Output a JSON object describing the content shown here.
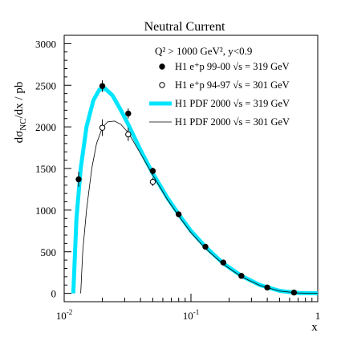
{
  "chart_data": {
    "type": "scatter",
    "title": "Neutral Current",
    "subtitle": "Q² > 1000 GeV², y<0.9",
    "xlabel": "x",
    "ylabel": "dσNC/dx / pb",
    "ylabel_main": "dσ",
    "ylabel_sub": "NC",
    "ylabel_rest": "/dx  / pb",
    "x_scale": "log",
    "xlim": [
      0.01,
      1
    ],
    "ylim": [
      -100,
      3100
    ],
    "x_major_ticks": [
      0.01,
      0.1,
      1
    ],
    "x_tick_labels": [
      {
        "base": "10",
        "exp": "-2"
      },
      {
        "base": "10",
        "exp": "-1"
      },
      {
        "base": "1",
        "exp": ""
      }
    ],
    "y_ticks": [
      0,
      500,
      1000,
      1500,
      2000,
      2500,
      3000
    ],
    "grid": false,
    "legend_position": "top-right",
    "legend": [
      {
        "marker": "filled-circle",
        "text": "H1 e⁺p 99-00  √s = 319 GeV"
      },
      {
        "marker": "open-circle",
        "text": "H1 e⁺p 94-97  √s = 301 GeV"
      },
      {
        "marker": "thick-band",
        "text": "H1 PDF 2000 √s = 319 GeV"
      },
      {
        "marker": "thin-line",
        "text": "H1 PDF 2000 √s = 301 GeV"
      }
    ],
    "series": [
      {
        "name": "H1 e⁺p 99-00  √s = 319 GeV",
        "style": "filled-circle",
        "x": [
          0.013,
          0.02,
          0.032,
          0.05,
          0.08,
          0.13,
          0.18,
          0.25,
          0.4,
          0.65
        ],
        "y": [
          1370,
          2490,
          2160,
          1470,
          950,
          560,
          370,
          210,
          70,
          10
        ],
        "err": [
          90,
          70,
          60,
          40,
          30,
          20,
          15,
          12,
          8,
          4
        ]
      },
      {
        "name": "H1 e⁺p 94-97  √s = 301 GeV",
        "style": "open-circle",
        "x": [
          0.02,
          0.032,
          0.05
        ],
        "y": [
          1990,
          1910,
          1340
        ],
        "err": [
          100,
          80,
          50
        ]
      },
      {
        "name": "H1 PDF 2000 √s = 319 GeV",
        "style": "thick-band",
        "color": "#00e5ff",
        "x": [
          0.0118,
          0.0125,
          0.0135,
          0.015,
          0.017,
          0.019,
          0.021,
          0.024,
          0.028,
          0.032,
          0.04,
          0.05,
          0.065,
          0.08,
          0.1,
          0.13,
          0.18,
          0.25,
          0.35,
          0.5,
          0.7,
          1.0
        ],
        "y": [
          0,
          900,
          1500,
          2000,
          2320,
          2450,
          2460,
          2380,
          2200,
          2030,
          1720,
          1440,
          1150,
          950,
          750,
          560,
          360,
          210,
          100,
          30,
          5,
          0
        ]
      },
      {
        "name": "H1 PDF 2000 √s = 301 GeV",
        "style": "thin-line",
        "color": "#000000",
        "x": [
          0.0135,
          0.014,
          0.015,
          0.0165,
          0.018,
          0.02,
          0.022,
          0.025,
          0.028,
          0.032,
          0.04,
          0.05,
          0.065,
          0.08,
          0.1,
          0.13,
          0.18,
          0.25,
          0.35,
          0.5,
          0.7,
          1.0
        ],
        "y": [
          0,
          500,
          1000,
          1500,
          1800,
          1990,
          2060,
          2070,
          2030,
          1930,
          1680,
          1420,
          1130,
          930,
          730,
          540,
          350,
          200,
          95,
          28,
          4,
          0
        ]
      }
    ]
  }
}
